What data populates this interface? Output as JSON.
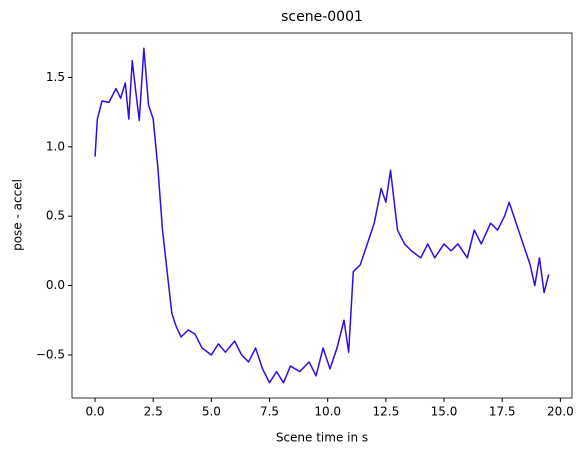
{
  "chart_data": {
    "type": "line",
    "title": "scene-0001",
    "xlabel": "Scene time in s",
    "ylabel": "pose - accel",
    "x": [
      0,
      0.1,
      0.3,
      0.6,
      0.9,
      1.1,
      1.3,
      1.45,
      1.6,
      1.75,
      1.9,
      2.1,
      2.3,
      2.5,
      2.7,
      2.9,
      3.1,
      3.3,
      3.5,
      3.7,
      4.0,
      4.3,
      4.6,
      5.0,
      5.3,
      5.6,
      6.0,
      6.3,
      6.6,
      6.9,
      7.2,
      7.5,
      7.8,
      8.1,
      8.4,
      8.8,
      9.2,
      9.5,
      9.8,
      10.1,
      10.4,
      10.7,
      10.9,
      11.1,
      11.4,
      11.7,
      12.0,
      12.3,
      12.5,
      12.7,
      13.0,
      13.3,
      13.6,
      14.0,
      14.3,
      14.6,
      15.0,
      15.3,
      15.6,
      16.0,
      16.3,
      16.6,
      17.0,
      17.3,
      17.6,
      17.8,
      18.1,
      18.4,
      18.7,
      18.9,
      19.1,
      19.3,
      19.5
    ],
    "series": [
      {
        "name": "pose - accel",
        "color": "#2b0fe6",
        "values": [
          0.93,
          1.2,
          1.33,
          1.32,
          1.42,
          1.35,
          1.46,
          1.2,
          1.62,
          1.4,
          1.19,
          1.71,
          1.3,
          1.2,
          0.85,
          0.4,
          0.1,
          -0.2,
          -0.3,
          -0.37,
          -0.32,
          -0.35,
          -0.45,
          -0.5,
          -0.42,
          -0.48,
          -0.4,
          -0.5,
          -0.55,
          -0.45,
          -0.6,
          -0.7,
          -0.62,
          -0.7,
          -0.58,
          -0.62,
          -0.55,
          -0.65,
          -0.45,
          -0.6,
          -0.45,
          -0.25,
          -0.48,
          0.1,
          0.15,
          0.3,
          0.45,
          0.7,
          0.6,
          0.83,
          0.4,
          0.3,
          0.25,
          0.2,
          0.3,
          0.2,
          0.3,
          0.25,
          0.3,
          0.2,
          0.4,
          0.3,
          0.45,
          0.4,
          0.5,
          0.6,
          0.45,
          0.3,
          0.15,
          0.0,
          0.2,
          -0.05,
          0.08
        ]
      }
    ],
    "xlim": [
      -0.99,
      20.5
    ],
    "xticks": [
      {
        "value": 0,
        "label": "0.0"
      },
      2.5,
      {
        "value": 5,
        "label": "5.0"
      },
      7.5,
      {
        "value": 10,
        "label": "10.0"
      },
      12.5,
      {
        "value": 15,
        "label": "15.0"
      },
      17.5,
      {
        "value": 20,
        "label": "20.0"
      }
    ],
    "ylim": [
      -0.81,
      1.82
    ],
    "yticks": [
      {
        "value": -0.5,
        "label": "−0.5"
      },
      {
        "value": 0,
        "label": "0.0"
      },
      0.5,
      {
        "value": 1,
        "label": "1.0"
      },
      1.5
    ]
  }
}
